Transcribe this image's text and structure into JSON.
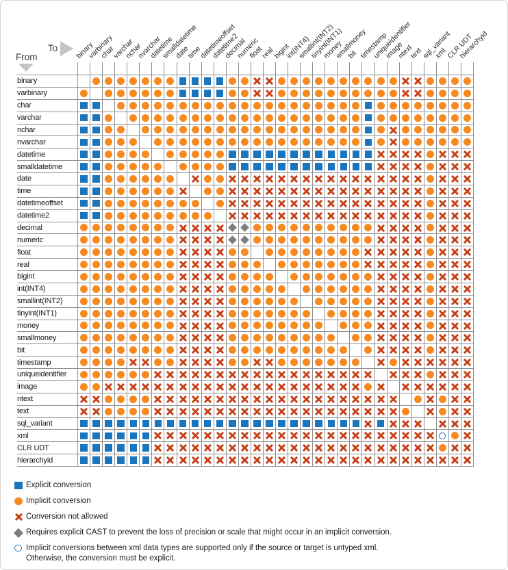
{
  "labels": {
    "from": "From",
    "to": "To"
  },
  "colors": {
    "explicit": "#1B75BC",
    "implicit": "#F6891F",
    "not_allowed": "#C64118",
    "cast_diamond": "#7E7E7E",
    "grid": "#8F8F8F",
    "arrow": "#C4C4C4"
  },
  "chart_data": {
    "type": "heatmap",
    "rows_axis_label": "From",
    "columns_axis_label": "To",
    "columns": [
      "binary",
      "varbinary",
      "char",
      "varchar",
      "nchar",
      "nvarchar",
      "datetime",
      "smalldatetime",
      "date",
      "time",
      "datetimeoffset",
      "datetime2",
      "decimal",
      "numeric",
      "float",
      "real",
      "bigint",
      "int(INT4)",
      "smallint(INT2)",
      "tinyint(INT1)",
      "money",
      "smallmoney",
      "bit",
      "timestamp",
      "uniqueidentifier",
      "image",
      "ntext",
      "text",
      "sql_variant",
      "xml",
      "CLR UDT",
      "hierarchyid"
    ],
    "rows": [
      "binary",
      "varbinary",
      "char",
      "varchar",
      "nchar",
      "nvarchar",
      "datetime",
      "smalldatetime",
      "date",
      "time",
      "datetimeoffset",
      "datetime2",
      "decimal",
      "numeric",
      "float",
      "real",
      "bigint",
      "int(INT4)",
      "smallint(INT2)",
      "tinyint(INT1)",
      "money",
      "smallmoney",
      "bit",
      "timestamp",
      "uniqueidentifier",
      "image",
      "ntext",
      "text",
      "sql_variant",
      "xml",
      "CLR UDT",
      "hierarchyid"
    ],
    "symbol_key": {
      "S": "Explicit conversion",
      "O": "Implicit conversion",
      "X": "Conversion not allowed",
      "D": "Requires explicit CAST",
      "C": "Implicit only if source or target is untyped xml",
      ".": "blank (same data type)"
    },
    "matrix": [
      ".OOOOOOOSSSSOOXXOOOOOOOOOOXXOOOO",
      "O.OOOOOOSSSSOOXXOOOOOOOOOOXXOOOO",
      "SS.OOOOOOOOOOOOOOOOOOOOSOOOOOOOO",
      "SSO.OOOOOOOOOOOOOOOOOOOSOOOOOOOO",
      "SSOO.OOOOOOOOOOOOOOOOOOSOXOOOOOO",
      "SSOOO.OOOOOOOOOOOOOOOOOSOXOOOOOO",
      "SSOOOO.OOOOOSSSSSSSSSSSSXXXXOXXX",
      "SSOOOOO.OOOOSSSSSSSSSSSSXXXXOXXX",
      "SSOOOOOO.XOOXXXXXXXXXXXXXXXXOXXX",
      "SSOOOOOOX.OOXXXXXXXXXXXXXXXXOXXX",
      "SSOOOOOOOO.OXXXXXXXXXXXXXXXXOXXX",
      "SSOOOOOOOOO.XXXXXXXXXXXXXXXXOXXX",
      "OOOOOOOOXXXXDDOOOOOOOOOOXXXXOXXX",
      "OOOOOOOOXXXXDDOOOOOOOOOOXXXXOXXX",
      "OOOOOOOOXXXXOO.OOOOOOOOXXXXXOXXX",
      "OOOOOOOOXXXXOOO.OOOOOOOXXXXXOXXX",
      "OOOOOOOOXXXXOOOO.OOOOOOOXXXXOXXX",
      "OOOOOOOOXXXXOOOOO.OOOOOOXXXXOXXX",
      "OOOOOOOOXXXXOOOOOO.OOOOOXXXXOXXX",
      "OOOOOOOOXXXXOOOOOOO.OOOOXXXXOXXX",
      "OOOOOOOOXXXXOOOOOOOO.OOOXXXXOXXX",
      "OOOOOOOOXXXXOOOOOOOOO.OOXXXXOXXX",
      "OOOOOOOOXXXXOOOOOOOOOO.OXXXXOXXX",
      "OOOOXXOOXXXXOOXXOOOOOOO.XOXXXXXX",
      "OOOOOOXXXXXXXXXXXXXXXXXX.XXXOXXX",
      "OOXXXXXXXXXXXXXXXXXXXXXOX.XXXXXX",
      "XXOOOOXXXXXXXXXXXXXXXXXXXX.OXOXX",
      "XXOOOOXXXXXXXXXXXXXXXXXXXXO.XOXX",
      "SSSSSSSSSSSSSSSSSSSSSSSXSXXX.XXX",
      "SSSSSSXXXXXXXXXXXXXXXXXXXXXXXCOX",
      "SSSSSSXXXXXXXXXXXXXXXXXXXXXXXOXX",
      "SSSSSSXXXXXXXXXXXXXXXXXXXXXXXXXX"
    ]
  },
  "legend": [
    {
      "symbol": "S",
      "label": "Explicit conversion"
    },
    {
      "symbol": "O",
      "label": "Implicit conversion"
    },
    {
      "symbol": "X",
      "label": "Conversion not allowed"
    },
    {
      "symbol": "D",
      "label": "Requires explicit CAST to prevent the loss of precision or scale that might occur in an implicit conversion."
    },
    {
      "symbol": "C",
      "label": "Implicit conversions between xml data types are supported only if the source or target is untyped xml.\nOtherwise, the conversion must be explicit."
    }
  ]
}
